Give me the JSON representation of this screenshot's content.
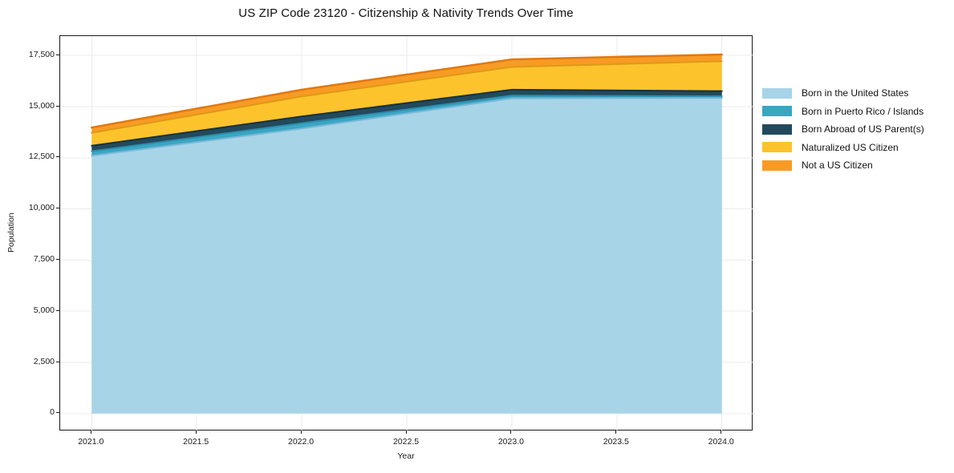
{
  "title": "US ZIP Code 23120 - Citizenship & Nativity Trends Over Time",
  "chart_data": {
    "type": "area",
    "stacked": true,
    "title": "US ZIP Code 23120 - Citizenship & Nativity Trends Over Time",
    "xlabel": "Year",
    "ylabel": "Population",
    "x": [
      2021,
      2022,
      2023,
      2024
    ],
    "series": [
      {
        "name": "Born in the United States",
        "color": "#a8d4e8",
        "edge_color": "#7ab8d8",
        "values": [
          12600,
          13930,
          15410,
          15430
        ]
      },
      {
        "name": "Born in Puerto Rico / Islands",
        "color": "#3aa6c2",
        "edge_color": "#2b8fae",
        "values": [
          220,
          260,
          130,
          80
        ]
      },
      {
        "name": "Born Abroad of US Parent(s)",
        "color": "#234a5c",
        "edge_color": "#15313f",
        "values": [
          270,
          330,
          290,
          250
        ]
      },
      {
        "name": "Naturalized US Citizen",
        "color": "#fcc32d",
        "edge_color": "#dd9a15",
        "values": [
          630,
          980,
          1110,
          1460
        ]
      },
      {
        "name": "Not a US Citizen",
        "color": "#f89b25",
        "edge_color": "#e0790f",
        "values": [
          260,
          330,
          370,
          330
        ]
      }
    ],
    "stack_totals": [
      13980,
      15830,
      17310,
      17550
    ],
    "xlim": [
      2020.85,
      2024.15
    ],
    "ylim": [
      -870,
      18450
    ],
    "xticks": {
      "values": [
        2021.0,
        2021.5,
        2022.0,
        2022.5,
        2023.0,
        2023.5,
        2024.0
      ],
      "labels": [
        "2021.0",
        "2021.5",
        "2022.0",
        "2022.5",
        "2023.0",
        "2023.5",
        "2024.0"
      ]
    },
    "yticks": {
      "values": [
        0,
        2500,
        5000,
        7500,
        10000,
        12500,
        15000,
        17500
      ],
      "labels": [
        "0",
        "2,500",
        "5,000",
        "7,500",
        "10,000",
        "12,500",
        "15,000",
        "17,500"
      ]
    },
    "grid": true,
    "grid_color": "#ebebeb",
    "legend_position": "right-outside",
    "background_color": "#ffffff"
  }
}
